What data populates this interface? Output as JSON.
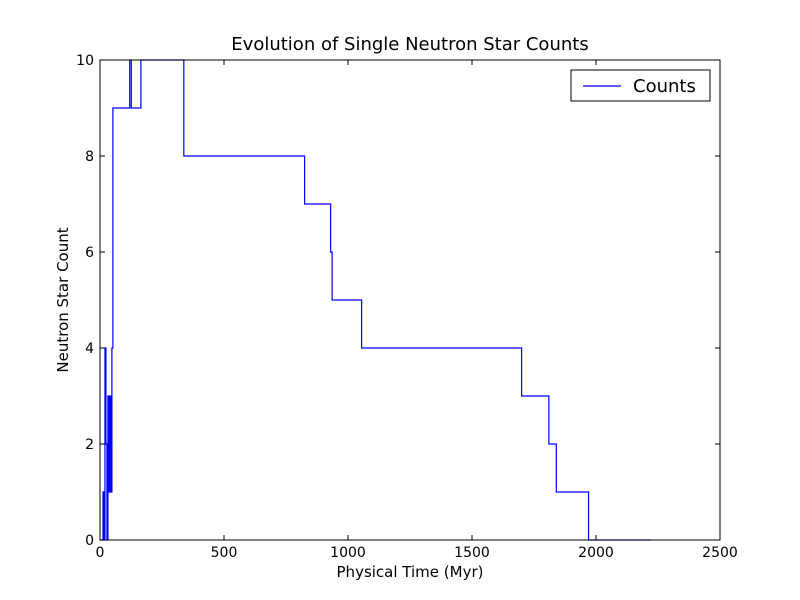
{
  "chart_data": {
    "type": "line",
    "title": "Evolution of Single Neutron Star Counts",
    "xlabel": "Physical Time (Myr)",
    "ylabel": "Neutron Star Count",
    "xlim": [
      0,
      2500
    ],
    "ylim": [
      0,
      10
    ],
    "xticks": [
      "0",
      "500",
      "1000",
      "1500",
      "2000",
      "2500"
    ],
    "yticks": [
      "0",
      "2",
      "4",
      "6",
      "8",
      "10"
    ],
    "grid": false,
    "legend_position": "top-right",
    "line_style": "steps-post",
    "series": [
      {
        "name": "Counts",
        "color": "#0000ff",
        "x": [
          0,
          12,
          16,
          20,
          24,
          28,
          32,
          36,
          40,
          44,
          48,
          52,
          56,
          120,
          126,
          165,
          168,
          338,
          825,
          930,
          936,
          1055,
          1700,
          1810,
          1840,
          1970,
          2220
        ],
        "y": [
          0,
          1,
          0,
          4,
          2,
          0,
          3,
          1,
          3,
          1,
          4,
          9,
          9,
          10,
          9,
          10,
          10,
          8,
          7,
          6,
          5,
          4,
          3,
          2,
          1,
          0,
          0
        ]
      }
    ]
  }
}
